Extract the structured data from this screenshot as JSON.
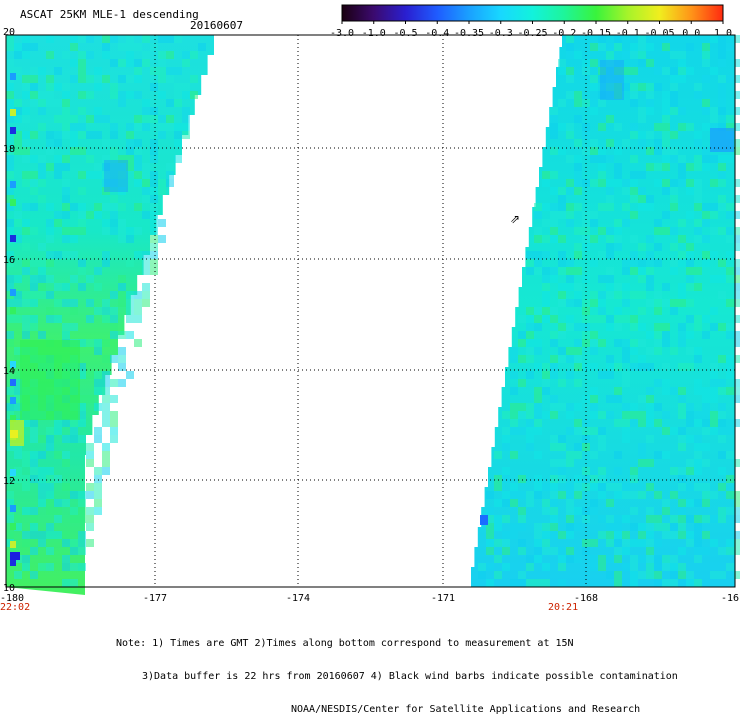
{
  "header": {
    "title": "ASCAT 25KM MLE-1 descending",
    "date": "20160607"
  },
  "colorbar": {
    "tick_labels": [
      "-3.0",
      "-1.0",
      "-0.5",
      "-0.4",
      "-0.35",
      "-0.3",
      "-0.25",
      "-0.2",
      "-0.15",
      "-0.1",
      "-0.05",
      "0.0",
      "1.0"
    ],
    "colors": [
      "#1a0010",
      "#3b0a6e",
      "#2a1fd0",
      "#1f5cff",
      "#1aa0ff",
      "#18d8ff",
      "#12f2dc",
      "#1ef59a",
      "#39f33c",
      "#a6f32a",
      "#f0ee1e",
      "#ff9418",
      "#ff2a10"
    ]
  },
  "map": {
    "lat_labels": [
      "20",
      "18",
      "16",
      "14",
      "12",
      "10"
    ],
    "lon_labels": [
      "-180",
      "-177",
      "-174",
      "-171",
      "-168",
      "-16"
    ],
    "time_labels": [
      "22:02",
      "20:21"
    ],
    "time_color": "#cc2200",
    "contamination_symbol": "⇗"
  },
  "notes": {
    "line1": "Note: 1) Times are GMT 2)Times along bottom correspond to measurement at 15N",
    "line2": "3)Data buffer is 22 hrs from 20160607 4) Black wind barbs indicate possible contamination",
    "line3": "NOAA/NESDIS/Center for Satellite Applications and Research"
  }
}
